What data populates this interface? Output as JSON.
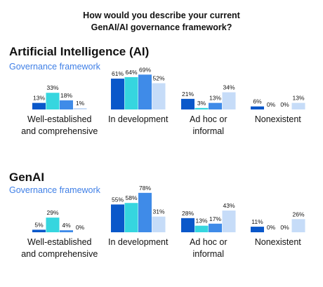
{
  "title": [
    "How would you describe your current",
    "GenAI/AI governance framework?"
  ],
  "colors": [
    "#0a58ca",
    "#36d6df",
    "#3f8be8",
    "#c6dcf8"
  ],
  "chart_data": [
    {
      "type": "bar",
      "title": "Artificial Intelligence (AI)",
      "subtitle": "Governance framework",
      "categories": [
        [
          "Well-established",
          "and comprehensive"
        ],
        [
          "In development"
        ],
        [
          "Ad hoc or",
          "informal"
        ],
        [
          "Nonexistent"
        ]
      ],
      "series": [
        {
          "values": [
            13,
            61,
            21,
            6
          ]
        },
        {
          "values": [
            33,
            64,
            3,
            0
          ]
        },
        {
          "values": [
            18,
            69,
            13,
            0
          ]
        },
        {
          "values": [
            1,
            52,
            34,
            13
          ]
        }
      ],
      "value_suffix": "%",
      "ylim": [
        0,
        80
      ],
      "grid": false
    },
    {
      "type": "bar",
      "title": "GenAI",
      "subtitle": "Governance framework",
      "categories": [
        [
          "Well-established",
          "and comprehensive"
        ],
        [
          "In development"
        ],
        [
          "Ad hoc or",
          "informal"
        ],
        [
          "Nonexistent"
        ]
      ],
      "series": [
        {
          "values": [
            5,
            55,
            28,
            11
          ]
        },
        {
          "values": [
            29,
            58,
            13,
            0
          ]
        },
        {
          "values": [
            4,
            78,
            17,
            0
          ]
        },
        {
          "values": [
            0,
            31,
            43,
            26
          ]
        }
      ],
      "value_suffix": "%",
      "ylim": [
        0,
        80
      ],
      "grid": false
    }
  ]
}
